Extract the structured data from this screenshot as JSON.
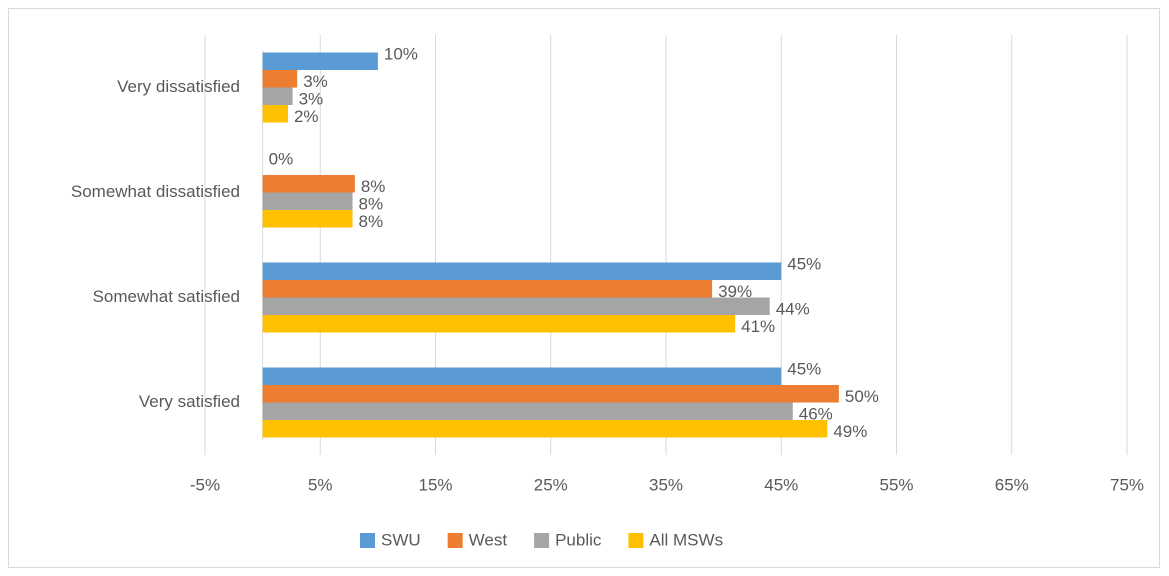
{
  "chart_data": {
    "type": "hbar",
    "categories": [
      "Very dissatisfied",
      "Somewhat dissatisfied",
      "Somewhat satisfied",
      "Very satisfied"
    ],
    "series": [
      {
        "name": "SWU",
        "color": "#5b9bd5",
        "values": [
          10,
          0,
          45,
          45
        ],
        "value_labels": [
          "10%",
          "0%",
          "45%",
          "45%"
        ]
      },
      {
        "name": "West",
        "color": "#ed7d31",
        "values": [
          3,
          8,
          39,
          50
        ],
        "value_labels": [
          "3%",
          "8%",
          "39%",
          "50%"
        ]
      },
      {
        "name": "Public",
        "color": "#a5a5a5",
        "values": [
          2.6,
          7.8,
          44,
          46
        ],
        "value_labels": [
          "3%",
          "8%",
          "44%",
          "46%"
        ]
      },
      {
        "name": "All MSWs",
        "color": "#ffc000",
        "values": [
          2.2,
          7.8,
          41,
          49
        ],
        "value_labels": [
          "2%",
          "8%",
          "41%",
          "49%"
        ]
      }
    ],
    "xlim": [
      -5,
      75
    ],
    "xticks": [
      {
        "value": -5,
        "label": "-5%"
      },
      {
        "value": 5,
        "label": "5%"
      },
      {
        "value": 15,
        "label": "15%"
      },
      {
        "value": 25,
        "label": "25%"
      },
      {
        "value": 35,
        "label": "35%"
      },
      {
        "value": 45,
        "label": "45%"
      },
      {
        "value": 55,
        "label": "55%"
      },
      {
        "value": 65,
        "label": "65%"
      },
      {
        "value": 75,
        "label": "75%"
      }
    ],
    "grid": true,
    "legend": "bottom"
  }
}
